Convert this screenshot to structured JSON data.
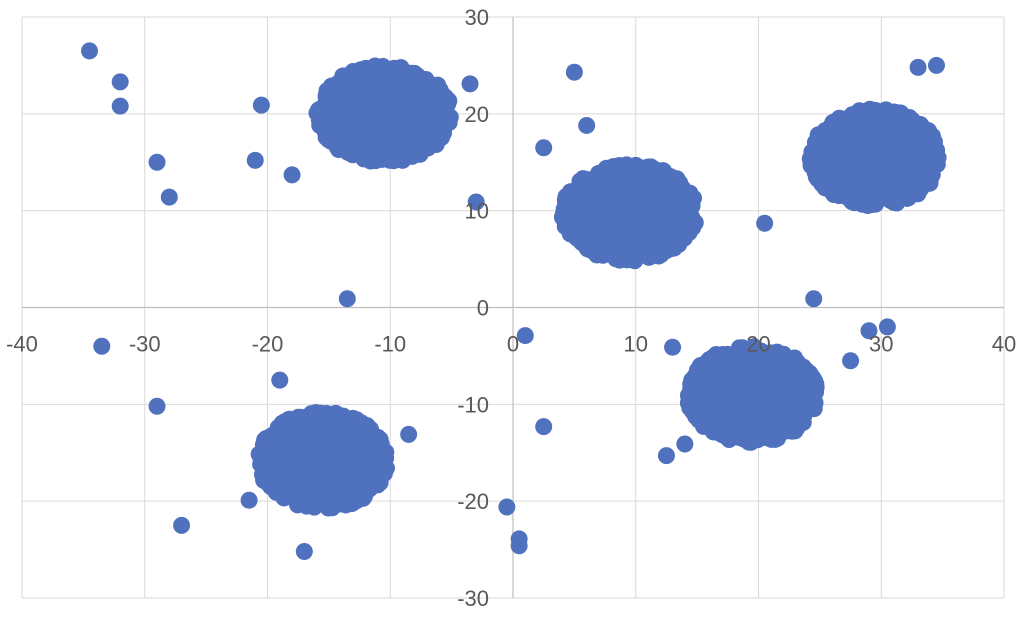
{
  "chart_data": {
    "type": "scatter",
    "title": "",
    "xlabel": "",
    "ylabel": "",
    "xlim": [
      -40,
      40
    ],
    "ylim": [
      -30,
      30
    ],
    "x_ticks": [
      -40,
      -30,
      -20,
      -10,
      0,
      10,
      20,
      30,
      40
    ],
    "y_ticks": [
      -30,
      -20,
      -10,
      0,
      10,
      20,
      30
    ],
    "grid": true,
    "legend": "none",
    "marker_color": "#4F71BE",
    "clusters": [
      {
        "center": [
          -10.5,
          20.0
        ],
        "x_radius": 5.5,
        "y_radius": 5.0
      },
      {
        "center": [
          9.5,
          9.8
        ],
        "x_radius": 5.5,
        "y_radius": 5.0
      },
      {
        "center": [
          29.5,
          15.5
        ],
        "x_radius": 5.3,
        "y_radius": 5.0
      },
      {
        "center": [
          19.5,
          -9.0
        ],
        "x_radius": 5.3,
        "y_radius": 5.0
      },
      {
        "center": [
          -15.5,
          -15.8
        ],
        "x_radius": 5.3,
        "y_radius": 5.0
      }
    ],
    "outliers": [
      {
        "x": -34.5,
        "y": 26.5
      },
      {
        "x": -32.0,
        "y": 23.3
      },
      {
        "x": -32.0,
        "y": 20.8
      },
      {
        "x": -29.0,
        "y": 15.0
      },
      {
        "x": -28.0,
        "y": 11.4
      },
      {
        "x": -20.5,
        "y": 20.9
      },
      {
        "x": -21.0,
        "y": 15.2
      },
      {
        "x": -18.0,
        "y": 13.7
      },
      {
        "x": -3.5,
        "y": 23.1
      },
      {
        "x": -3.0,
        "y": 10.9
      },
      {
        "x": -13.5,
        "y": 0.9
      },
      {
        "x": -33.5,
        "y": -4.0
      },
      {
        "x": -29.0,
        "y": -10.2
      },
      {
        "x": -19.0,
        "y": -7.5
      },
      {
        "x": -8.5,
        "y": -13.1
      },
      {
        "x": -21.5,
        "y": -19.9
      },
      {
        "x": -27.0,
        "y": -22.5
      },
      {
        "x": -17.0,
        "y": -25.2
      },
      {
        "x": 1.0,
        "y": -2.9
      },
      {
        "x": 2.5,
        "y": 16.5
      },
      {
        "x": 5.0,
        "y": 24.3
      },
      {
        "x": 6.0,
        "y": 18.8
      },
      {
        "x": 2.5,
        "y": -12.3
      },
      {
        "x": -0.5,
        "y": -20.6
      },
      {
        "x": 0.5,
        "y": -23.9
      },
      {
        "x": 0.5,
        "y": -24.6
      },
      {
        "x": 13.0,
        "y": -4.1
      },
      {
        "x": 12.5,
        "y": -15.3
      },
      {
        "x": 14.0,
        "y": -14.1
      },
      {
        "x": 20.5,
        "y": 8.7
      },
      {
        "x": 24.5,
        "y": 0.9
      },
      {
        "x": 27.5,
        "y": -5.5
      },
      {
        "x": 29.0,
        "y": -2.4
      },
      {
        "x": 30.5,
        "y": -2.0
      },
      {
        "x": 33.0,
        "y": 24.8
      },
      {
        "x": 34.5,
        "y": 25.0
      }
    ]
  }
}
